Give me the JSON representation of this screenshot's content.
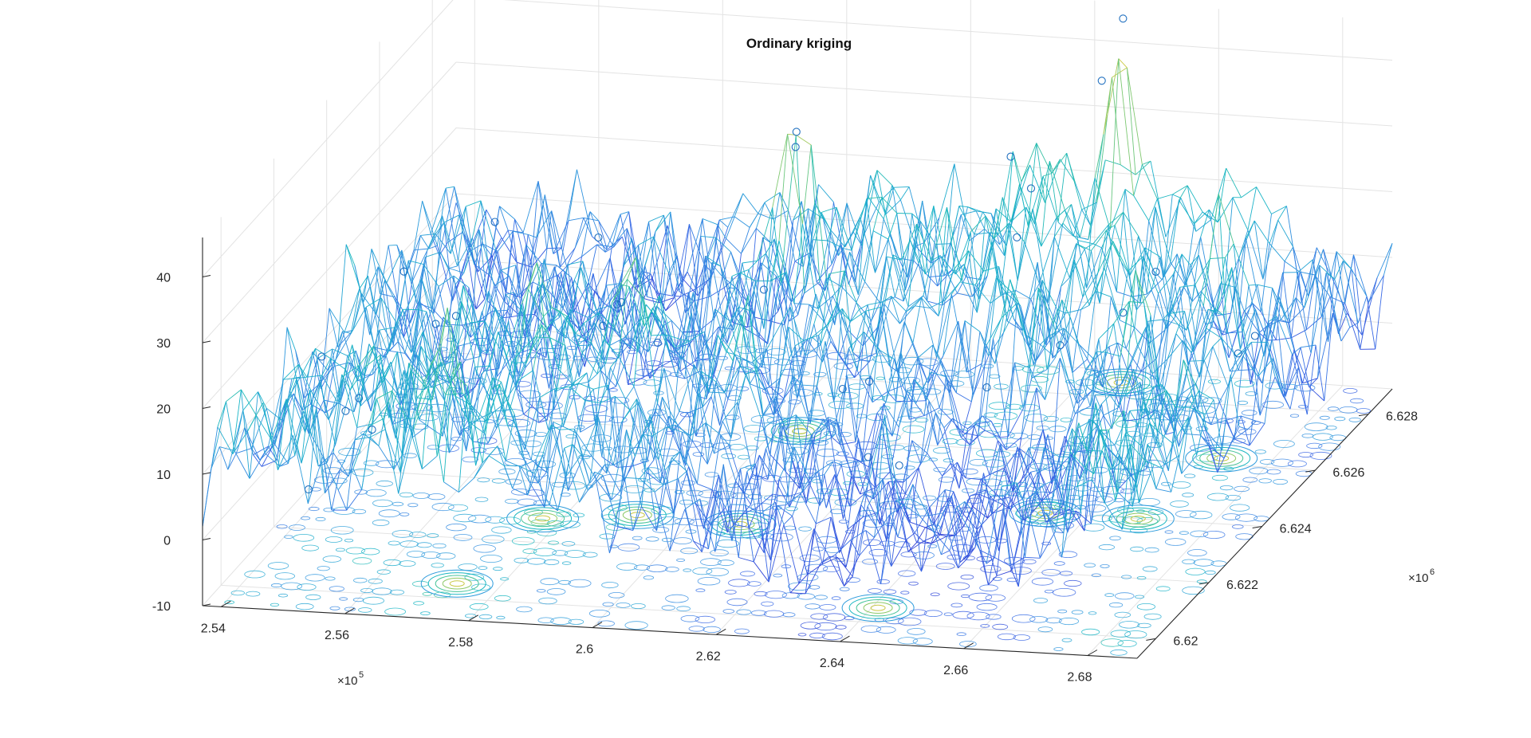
{
  "chart_data": {
    "type": "surface",
    "title": "Ordinary kriging",
    "x_axis": {
      "ticks": [
        2.54,
        2.56,
        2.58,
        2.6,
        2.62,
        2.64,
        2.66,
        2.68
      ],
      "tick_labels": [
        "2.54",
        "2.56",
        "2.58",
        "2.6",
        "2.62",
        "2.64",
        "2.66",
        "2.68"
      ],
      "exponent_label": "×10",
      "exponent": "5",
      "range": [
        2.537,
        2.688
      ]
    },
    "y_axis": {
      "ticks": [
        6.62,
        6.622,
        6.624,
        6.626,
        6.628
      ],
      "tick_labels": [
        "6.62",
        "6.622",
        "6.624",
        "6.626",
        "6.628"
      ],
      "exponent_label": "×10",
      "exponent": "6",
      "range": [
        6.6193,
        6.6289
      ]
    },
    "z_axis": {
      "ticks": [
        -10,
        0,
        10,
        20,
        30,
        40
      ],
      "tick_labels": [
        "-10",
        "0",
        "10",
        "20",
        "30",
        "40"
      ],
      "range": [
        -10,
        46
      ]
    },
    "grid": true,
    "colormap": [
      "#2e3fd6",
      "#3a6be6",
      "#2f98de",
      "#19b6c6",
      "#3ec39a",
      "#8cc969",
      "#c8c846",
      "#ead836"
    ],
    "contour_base_level": -10,
    "mesh_resolution": [
      62,
      30
    ],
    "peaks": [
      {
        "x": 2.604,
        "y": 6.6262,
        "z": 38
      },
      {
        "x": 2.646,
        "y": 6.6285,
        "z": 45
      },
      {
        "x": 2.672,
        "y": 6.6262,
        "z": 36
      },
      {
        "x": 2.577,
        "y": 6.6228,
        "z": 30
      },
      {
        "x": 2.591,
        "y": 6.6231,
        "z": 31
      },
      {
        "x": 2.653,
        "y": 6.624,
        "z": 28
      },
      {
        "x": 2.668,
        "y": 6.624,
        "z": 27
      },
      {
        "x": 2.608,
        "y": 6.623,
        "z": 26
      },
      {
        "x": 2.573,
        "y": 6.6205,
        "z": 22
      },
      {
        "x": 2.641,
        "y": 6.6205,
        "z": 24
      }
    ],
    "sample_points": [
      {
        "x": 2.645,
        "y": 6.6288,
        "z": 44
      },
      {
        "x": 2.603,
        "y": 6.6263,
        "z": 35
      },
      {
        "x": 2.605,
        "y": 6.6258,
        "z": 35
      },
      {
        "x": 2.641,
        "y": 6.6255,
        "z": 37
      },
      {
        "x": 2.645,
        "y": 6.628,
        "z": 38
      },
      {
        "x": 2.673,
        "y": 6.6235,
        "z": 30
      },
      {
        "x": 2.672,
        "y": 6.6225,
        "z": 28
      },
      {
        "x": 2.565,
        "y": 6.6238,
        "z": 30
      },
      {
        "x": 2.583,
        "y": 6.6235,
        "z": 30
      },
      {
        "x": 2.591,
        "y": 6.6225,
        "z": 25
      },
      {
        "x": 2.611,
        "y": 6.6232,
        "z": 25
      },
      {
        "x": 2.643,
        "y": 6.6258,
        "z": 31
      },
      {
        "x": 2.645,
        "y": 6.6248,
        "z": 28
      },
      {
        "x": 2.558,
        "y": 6.622,
        "z": 30
      },
      {
        "x": 2.549,
        "y": 6.621,
        "z": 21
      },
      {
        "x": 2.561,
        "y": 6.6225,
        "z": 20
      },
      {
        "x": 2.563,
        "y": 6.6228,
        "z": 20
      },
      {
        "x": 2.586,
        "y": 6.6235,
        "z": 20
      },
      {
        "x": 2.585,
        "y": 6.6232,
        "z": 18
      },
      {
        "x": 2.555,
        "y": 6.621,
        "z": 15
      },
      {
        "x": 2.552,
        "y": 6.6212,
        "z": 12
      },
      {
        "x": 2.555,
        "y": 6.6215,
        "z": 8
      },
      {
        "x": 2.593,
        "y": 6.6234,
        "z": 15
      },
      {
        "x": 2.625,
        "y": 6.6229,
        "z": 12
      },
      {
        "x": 2.628,
        "y": 6.6232,
        "z": 12
      },
      {
        "x": 2.644,
        "y": 6.6239,
        "z": 9
      },
      {
        "x": 2.633,
        "y": 6.622,
        "z": 6
      },
      {
        "x": 2.638,
        "y": 6.622,
        "z": 5
      },
      {
        "x": 2.685,
        "y": 6.6238,
        "z": 17
      },
      {
        "x": 2.686,
        "y": 6.6242,
        "z": 18
      },
      {
        "x": 2.652,
        "y": 6.6248,
        "z": 12
      },
      {
        "x": 2.549,
        "y": 6.6205,
        "z": 3
      }
    ]
  }
}
